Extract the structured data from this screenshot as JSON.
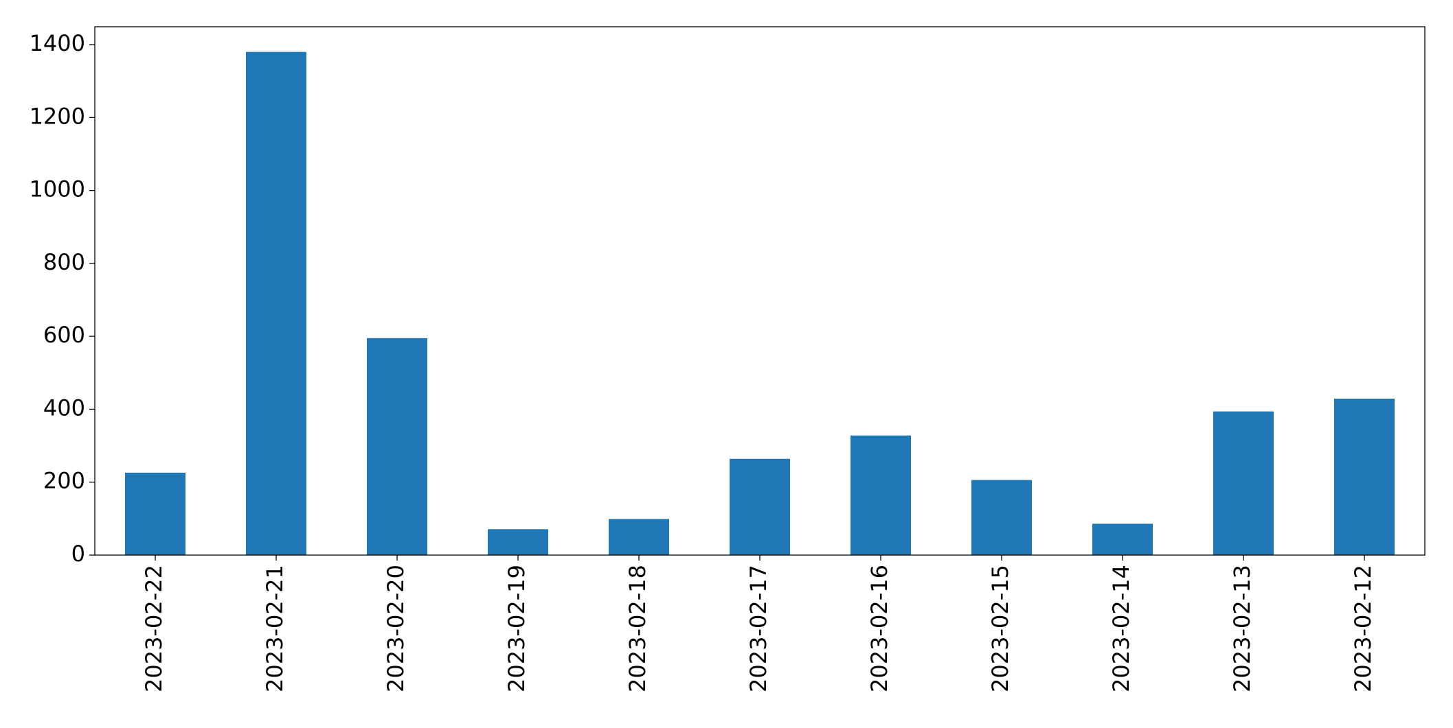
{
  "chart_data": {
    "type": "bar",
    "categories": [
      "2023-02-22",
      "2023-02-21",
      "2023-02-20",
      "2023-02-19",
      "2023-02-18",
      "2023-02-17",
      "2023-02-16",
      "2023-02-15",
      "2023-02-14",
      "2023-02-13",
      "2023-02-12"
    ],
    "values": [
      226,
      1380,
      595,
      71,
      99,
      264,
      328,
      206,
      86,
      394,
      429
    ],
    "color": "#1f77b4",
    "ylim": [
      0,
      1449
    ],
    "yticks": [
      0,
      200,
      400,
      600,
      800,
      1000,
      1200,
      1400
    ],
    "grid": false
  }
}
